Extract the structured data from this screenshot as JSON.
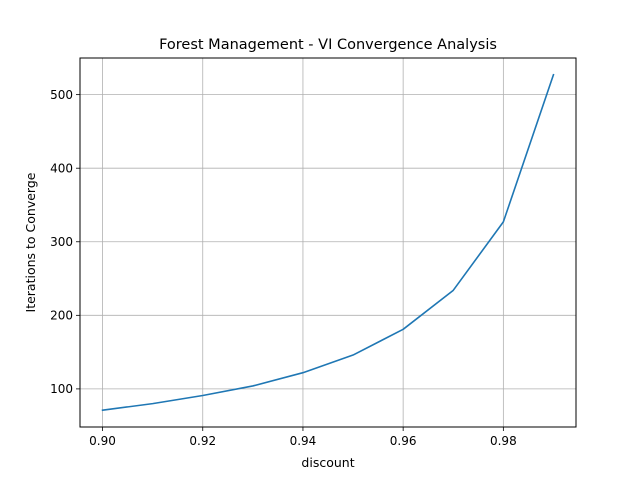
{
  "chart_data": {
    "type": "line",
    "title": "Forest Management - VI Convergence Analysis",
    "xlabel": "discount",
    "ylabel": "Iterations to Converge",
    "x": [
      0.9,
      0.91,
      0.92,
      0.93,
      0.94,
      0.95,
      0.96,
      0.97,
      0.98,
      0.99
    ],
    "series": [
      {
        "values": [
          71,
          80,
          91,
          104,
          122,
          146,
          181,
          234,
          327,
          527
        ],
        "color": "#1f77b4"
      }
    ],
    "xlim": [
      0.8955,
      0.9945
    ],
    "ylim": [
      48.2,
      549.8
    ],
    "xticks": [
      0.9,
      0.92,
      0.94,
      0.96,
      0.98
    ],
    "xtick_labels": [
      "0.90",
      "0.92",
      "0.94",
      "0.96",
      "0.98"
    ],
    "yticks": [
      100,
      200,
      300,
      400,
      500
    ],
    "ytick_labels": [
      "100",
      "200",
      "300",
      "400",
      "500"
    ],
    "grid": true,
    "grid_color": "#b0b0b0"
  }
}
